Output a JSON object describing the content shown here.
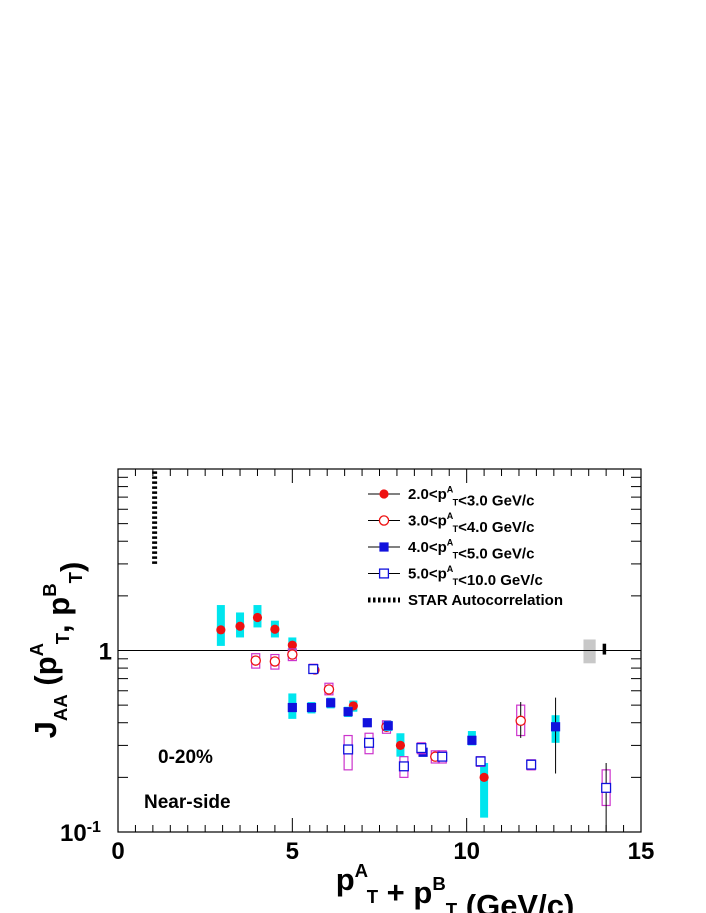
{
  "chart_data": {
    "type": "scatter",
    "xlabel": "p_T^A + p_T^B (GeV/c)",
    "ylabel": "J_AA (p_T^A, p_T^B)",
    "xlim": [
      0,
      15
    ],
    "ylim": [
      0.1,
      10
    ],
    "yscale": "log",
    "x_ticks": [
      "0",
      "5",
      "10",
      "15"
    ],
    "y_ticks": [
      "10^-1",
      "1"
    ],
    "grid": false,
    "legend_position": "top-right",
    "reference_line_y": 1.0,
    "annotations": {
      "centrality": "0-20%",
      "region": "Near-side"
    },
    "series": [
      {
        "name": "2.0<p_T^A<3.0 GeV/c",
        "marker": "filled-circle",
        "color": "#ee1111",
        "syscolor": "#00e5ee",
        "points": [
          {
            "x": 2.95,
            "y": 1.3,
            "syslo": 1.06,
            "syshi": 1.78
          },
          {
            "x": 3.5,
            "y": 1.36,
            "syslo": 1.18,
            "syshi": 1.62
          },
          {
            "x": 4.0,
            "y": 1.52,
            "syslo": 1.34,
            "syshi": 1.78
          },
          {
            "x": 4.5,
            "y": 1.31,
            "syslo": 1.18,
            "syshi": 1.46
          },
          {
            "x": 5.0,
            "y": 1.07,
            "syslo": 0.98,
            "syshi": 1.18
          },
          {
            "x": 5.65,
            "y": 0.78,
            "syslo": 0.75,
            "syshi": 0.81
          },
          {
            "x": 6.75,
            "y": 0.495,
            "syslo": 0.46,
            "syshi": 0.53
          },
          {
            "x": 8.1,
            "y": 0.3,
            "syslo": 0.26,
            "syshi": 0.35
          },
          {
            "x": 10.5,
            "y": 0.2,
            "syslo": 0.12,
            "syshi": 0.24
          }
        ]
      },
      {
        "name": "3.0<p_T^A<4.0 GeV/c",
        "marker": "open-circle",
        "color": "#ee1111",
        "syscolor": "#cc33cc",
        "points": [
          {
            "x": 3.95,
            "y": 0.88,
            "syslo": 0.8,
            "syshi": 0.96
          },
          {
            "x": 4.5,
            "y": 0.87,
            "syslo": 0.79,
            "syshi": 0.95
          },
          {
            "x": 5.0,
            "y": 0.95,
            "syslo": 0.88,
            "syshi": 1.02
          },
          {
            "x": 6.05,
            "y": 0.61,
            "syslo": 0.57,
            "syshi": 0.66
          },
          {
            "x": 7.7,
            "y": 0.38,
            "syslo": 0.35,
            "syshi": 0.41
          },
          {
            "x": 9.1,
            "y": 0.26,
            "syslo": 0.24,
            "syshi": 0.28
          },
          {
            "x": 11.55,
            "y": 0.41,
            "syslo": 0.34,
            "syshi": 0.5,
            "errlo": 0.33,
            "errhi": 0.52
          }
        ]
      },
      {
        "name": "4.0<p_T^A<5.0 GeV/c",
        "marker": "filled-square",
        "color": "#1111dd",
        "syscolor": "#00e5ee",
        "points": [
          {
            "x": 5.0,
            "y": 0.485,
            "syslo": 0.42,
            "syshi": 0.58
          },
          {
            "x": 5.55,
            "y": 0.485,
            "syslo": 0.45,
            "syshi": 0.52
          },
          {
            "x": 6.1,
            "y": 0.515,
            "syslo": 0.48,
            "syshi": 0.55
          },
          {
            "x": 6.6,
            "y": 0.46,
            "syslo": 0.43,
            "syshi": 0.49
          },
          {
            "x": 7.15,
            "y": 0.4,
            "syslo": 0.38,
            "syshi": 0.42
          },
          {
            "x": 7.75,
            "y": 0.385,
            "syslo": 0.36,
            "syshi": 0.41
          },
          {
            "x": 8.75,
            "y": 0.275,
            "syslo": 0.26,
            "syshi": 0.29
          },
          {
            "x": 10.15,
            "y": 0.32,
            "syslo": 0.3,
            "syshi": 0.36
          },
          {
            "x": 12.55,
            "y": 0.38,
            "syslo": 0.31,
            "syshi": 0.44,
            "errlo": 0.21,
            "errhi": 0.55
          }
        ]
      },
      {
        "name": "5.0<p_T^A<10.0 GeV/c",
        "marker": "open-square",
        "color": "#1111dd",
        "syscolor": "#cc33cc",
        "points": [
          {
            "x": 5.6,
            "y": 0.79,
            "syslo": 0.75,
            "syshi": 0.84
          },
          {
            "x": 6.6,
            "y": 0.285,
            "syslo": 0.22,
            "syshi": 0.34
          },
          {
            "x": 7.2,
            "y": 0.31,
            "syslo": 0.27,
            "syshi": 0.35
          },
          {
            "x": 8.2,
            "y": 0.23,
            "syslo": 0.2,
            "syshi": 0.26
          },
          {
            "x": 8.7,
            "y": 0.29,
            "syslo": 0.27,
            "syshi": 0.31
          },
          {
            "x": 9.3,
            "y": 0.26,
            "syslo": 0.24,
            "syshi": 0.28
          },
          {
            "x": 10.4,
            "y": 0.245,
            "syslo": 0.23,
            "syshi": 0.26
          },
          {
            "x": 11.85,
            "y": 0.235,
            "syslo": 0.22,
            "syshi": 0.25
          },
          {
            "x": 14.0,
            "y": 0.175,
            "syslo": 0.14,
            "syshi": 0.22,
            "errlo": 0.1,
            "errhi": 0.24
          }
        ]
      }
    ],
    "autocorrelation": {
      "name": "STAR Autocorrelation",
      "x": 1.05,
      "ylo": 3.0,
      "yhi": 10.0
    },
    "global_uncertainty": {
      "box": {
        "x0": 13.35,
        "x1": 13.7,
        "ylo": 0.85,
        "yhi": 1.15,
        "color": "#c8c8c8"
      },
      "bar": {
        "x": 13.95,
        "ylo": 0.95,
        "yhi": 1.09
      }
    }
  },
  "colors": {
    "red": "#ee1111",
    "blue": "#1111dd",
    "cyan_sys": "#00e5ee",
    "magenta_sys": "#cc33cc",
    "gray_global": "#c8c8c8"
  }
}
